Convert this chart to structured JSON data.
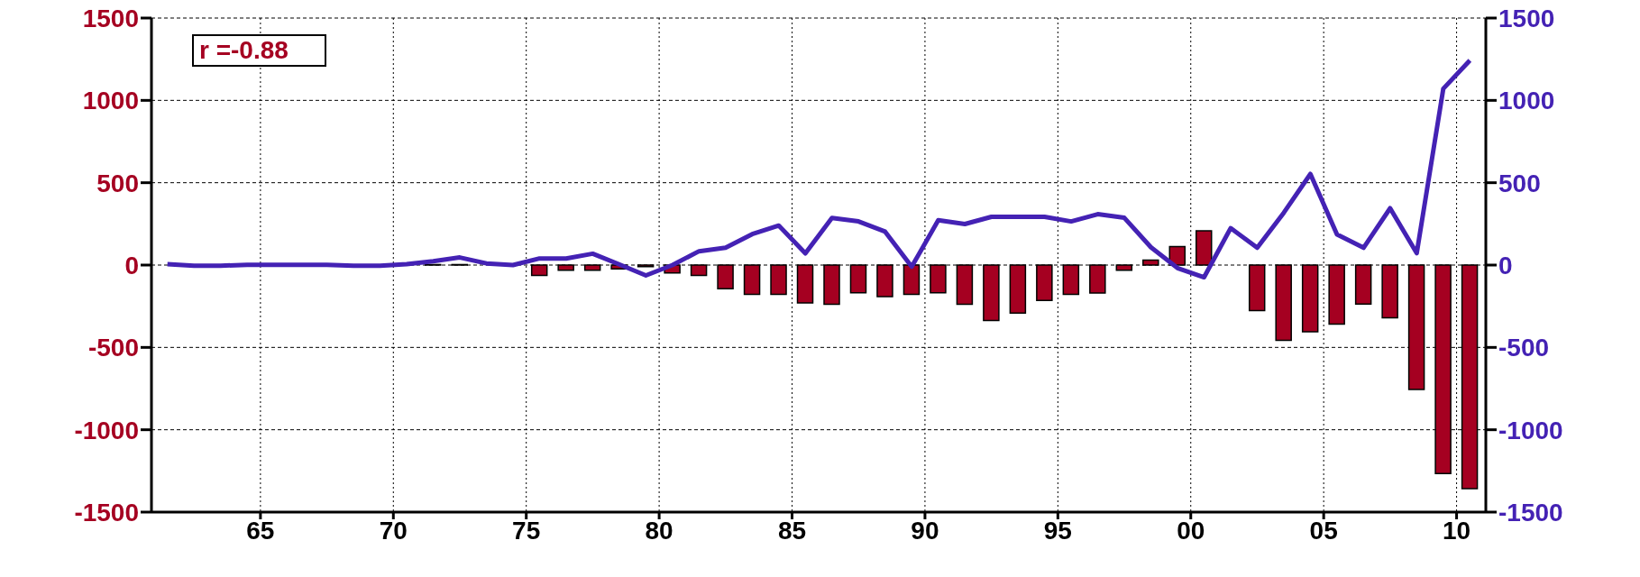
{
  "chart_data": {
    "type": "bar",
    "x": [
      1961.5,
      1962.5,
      1963.5,
      1964.5,
      1965.5,
      1966.5,
      1967.5,
      1968.5,
      1969.5,
      1970.5,
      1971.5,
      1972.5,
      1973.5,
      1974.5,
      1975.5,
      1976.5,
      1977.5,
      1978.5,
      1979.5,
      1980.5,
      1981.5,
      1982.5,
      1983.5,
      1984.5,
      1985.5,
      1986.5,
      1987.5,
      1988.5,
      1989.5,
      1990.5,
      1991.5,
      1992.5,
      1993.5,
      1994.5,
      1995.5,
      1996.5,
      1997.5,
      1998.5,
      1999.5,
      2000.5,
      2001.5,
      2002.5,
      2003.5,
      2004.5,
      2005.5,
      2006.5,
      2007.5,
      2008.5,
      2009.5,
      2010.5
    ],
    "series": [
      {
        "color": "#a50021",
        "values": [
          null,
          null,
          null,
          null,
          null,
          null,
          null,
          null,
          null,
          null,
          3,
          3,
          null,
          null,
          -63,
          -31,
          -31,
          -23,
          -10,
          -48,
          -63,
          -144,
          -178,
          -178,
          -230,
          -238,
          -169,
          -192,
          -178,
          -169,
          -238,
          -336,
          -291,
          -215,
          -178,
          -170,
          -31,
          30,
          112,
          208,
          null,
          -276,
          -457,
          -405,
          -358,
          -237,
          -320,
          -755,
          -1266,
          -1357
        ]
      },
      {
        "type": "line",
        "axis": "y2",
        "color": "#4422b4",
        "values": [
          6,
          -4,
          -4,
          2,
          2,
          2,
          2,
          -4,
          -4,
          6,
          23,
          46,
          10,
          0,
          40,
          40,
          69,
          4,
          -63,
          0,
          84,
          105,
          188,
          240,
          71,
          286,
          265,
          203,
          -10,
          272,
          249,
          293,
          293,
          293,
          265,
          309,
          287,
          108,
          -18,
          -74,
          224,
          105,
          318,
          553,
          186,
          105,
          345,
          72,
          1071,
          1243
        ]
      }
    ],
    "xlim": [
      1960.9,
      2011.1
    ],
    "xticks": [
      {
        "value": 1965,
        "label": "65"
      },
      {
        "value": 1970,
        "label": "70"
      },
      {
        "value": 1975,
        "label": "75"
      },
      {
        "value": 1980,
        "label": "80"
      },
      {
        "value": 1985,
        "label": "85"
      },
      {
        "value": 1990,
        "label": "90"
      },
      {
        "value": 1995,
        "label": "95"
      },
      {
        "value": 2000,
        "label": "00"
      },
      {
        "value": 2005,
        "label": "05"
      },
      {
        "value": 2010,
        "label": "10"
      }
    ],
    "ylim": [
      -1500,
      1500
    ],
    "yticks": [
      -1500,
      -1000,
      -500,
      0,
      500,
      1000,
      1500
    ],
    "y2lim": [
      -1500,
      1500
    ],
    "y2ticks": [
      -1500,
      -1000,
      -500,
      0,
      500,
      1000,
      1500
    ],
    "grid": true,
    "marker": "none",
    "line_style": "solid",
    "annotations": [
      "r =-0.88"
    ]
  }
}
